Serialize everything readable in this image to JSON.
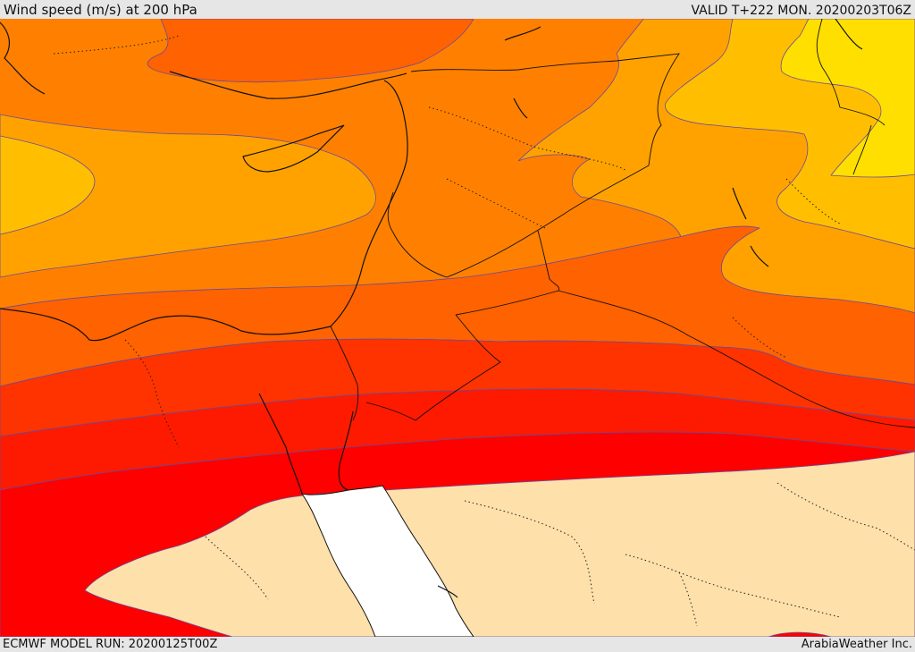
{
  "header": {
    "title": "Wind speed (m/s) at 200 hPa",
    "valid": "VALID T+222 MON. 20200203T06Z"
  },
  "footer": {
    "model_run": "ECMWF MODEL RUN: 20200125T00Z",
    "brand": "ArabiaWeather Inc."
  },
  "colors": {
    "band_darkred": "#ff0000",
    "band_red": "#fd1a00",
    "band_redorange": "#ff3300",
    "band_orangered": "#ff6200",
    "band_orange": "#ff8000",
    "band_lightorange": "#ffa200",
    "band_amber": "#ffbf00",
    "band_yellow": "#ffdf00",
    "band_calm": "#fde0aa",
    "sea_clipped": "#ffffff"
  }
}
